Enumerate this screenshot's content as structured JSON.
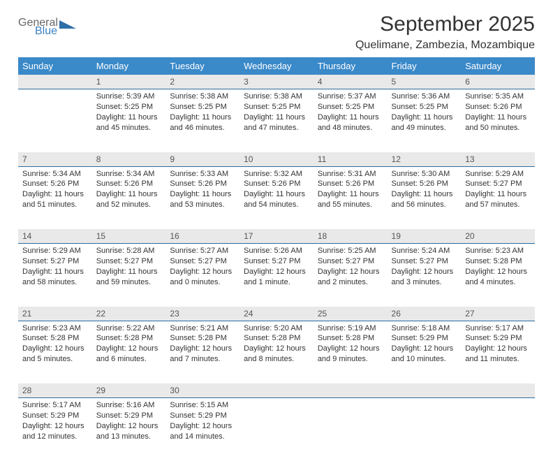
{
  "logo": {
    "part1": "General",
    "part2": "Blue"
  },
  "title": "September 2025",
  "location": "Quelimane, Zambezia, Mozambique",
  "colors": {
    "header_bg": "#3a89c9",
    "header_text": "#ffffff",
    "daynum_bg": "#e9e9e9",
    "daynum_border": "#2c6ca0",
    "logo_gray": "#666666",
    "logo_blue": "#3a7fc4",
    "triangle": "#2e6fa8"
  },
  "day_headers": [
    "Sunday",
    "Monday",
    "Tuesday",
    "Wednesday",
    "Thursday",
    "Friday",
    "Saturday"
  ],
  "weeks": [
    {
      "nums": [
        "",
        "1",
        "2",
        "3",
        "4",
        "5",
        "6"
      ],
      "cells": [
        {
          "sunrise": "",
          "sunset": "",
          "daylight1": "",
          "daylight2": ""
        },
        {
          "sunrise": "Sunrise: 5:39 AM",
          "sunset": "Sunset: 5:25 PM",
          "daylight1": "Daylight: 11 hours",
          "daylight2": "and 45 minutes."
        },
        {
          "sunrise": "Sunrise: 5:38 AM",
          "sunset": "Sunset: 5:25 PM",
          "daylight1": "Daylight: 11 hours",
          "daylight2": "and 46 minutes."
        },
        {
          "sunrise": "Sunrise: 5:38 AM",
          "sunset": "Sunset: 5:25 PM",
          "daylight1": "Daylight: 11 hours",
          "daylight2": "and 47 minutes."
        },
        {
          "sunrise": "Sunrise: 5:37 AM",
          "sunset": "Sunset: 5:25 PM",
          "daylight1": "Daylight: 11 hours",
          "daylight2": "and 48 minutes."
        },
        {
          "sunrise": "Sunrise: 5:36 AM",
          "sunset": "Sunset: 5:25 PM",
          "daylight1": "Daylight: 11 hours",
          "daylight2": "and 49 minutes."
        },
        {
          "sunrise": "Sunrise: 5:35 AM",
          "sunset": "Sunset: 5:26 PM",
          "daylight1": "Daylight: 11 hours",
          "daylight2": "and 50 minutes."
        }
      ]
    },
    {
      "nums": [
        "7",
        "8",
        "9",
        "10",
        "11",
        "12",
        "13"
      ],
      "cells": [
        {
          "sunrise": "Sunrise: 5:34 AM",
          "sunset": "Sunset: 5:26 PM",
          "daylight1": "Daylight: 11 hours",
          "daylight2": "and 51 minutes."
        },
        {
          "sunrise": "Sunrise: 5:34 AM",
          "sunset": "Sunset: 5:26 PM",
          "daylight1": "Daylight: 11 hours",
          "daylight2": "and 52 minutes."
        },
        {
          "sunrise": "Sunrise: 5:33 AM",
          "sunset": "Sunset: 5:26 PM",
          "daylight1": "Daylight: 11 hours",
          "daylight2": "and 53 minutes."
        },
        {
          "sunrise": "Sunrise: 5:32 AM",
          "sunset": "Sunset: 5:26 PM",
          "daylight1": "Daylight: 11 hours",
          "daylight2": "and 54 minutes."
        },
        {
          "sunrise": "Sunrise: 5:31 AM",
          "sunset": "Sunset: 5:26 PM",
          "daylight1": "Daylight: 11 hours",
          "daylight2": "and 55 minutes."
        },
        {
          "sunrise": "Sunrise: 5:30 AM",
          "sunset": "Sunset: 5:26 PM",
          "daylight1": "Daylight: 11 hours",
          "daylight2": "and 56 minutes."
        },
        {
          "sunrise": "Sunrise: 5:29 AM",
          "sunset": "Sunset: 5:27 PM",
          "daylight1": "Daylight: 11 hours",
          "daylight2": "and 57 minutes."
        }
      ]
    },
    {
      "nums": [
        "14",
        "15",
        "16",
        "17",
        "18",
        "19",
        "20"
      ],
      "cells": [
        {
          "sunrise": "Sunrise: 5:29 AM",
          "sunset": "Sunset: 5:27 PM",
          "daylight1": "Daylight: 11 hours",
          "daylight2": "and 58 minutes."
        },
        {
          "sunrise": "Sunrise: 5:28 AM",
          "sunset": "Sunset: 5:27 PM",
          "daylight1": "Daylight: 11 hours",
          "daylight2": "and 59 minutes."
        },
        {
          "sunrise": "Sunrise: 5:27 AM",
          "sunset": "Sunset: 5:27 PM",
          "daylight1": "Daylight: 12 hours",
          "daylight2": "and 0 minutes."
        },
        {
          "sunrise": "Sunrise: 5:26 AM",
          "sunset": "Sunset: 5:27 PM",
          "daylight1": "Daylight: 12 hours",
          "daylight2": "and 1 minute."
        },
        {
          "sunrise": "Sunrise: 5:25 AM",
          "sunset": "Sunset: 5:27 PM",
          "daylight1": "Daylight: 12 hours",
          "daylight2": "and 2 minutes."
        },
        {
          "sunrise": "Sunrise: 5:24 AM",
          "sunset": "Sunset: 5:27 PM",
          "daylight1": "Daylight: 12 hours",
          "daylight2": "and 3 minutes."
        },
        {
          "sunrise": "Sunrise: 5:23 AM",
          "sunset": "Sunset: 5:28 PM",
          "daylight1": "Daylight: 12 hours",
          "daylight2": "and 4 minutes."
        }
      ]
    },
    {
      "nums": [
        "21",
        "22",
        "23",
        "24",
        "25",
        "26",
        "27"
      ],
      "cells": [
        {
          "sunrise": "Sunrise: 5:23 AM",
          "sunset": "Sunset: 5:28 PM",
          "daylight1": "Daylight: 12 hours",
          "daylight2": "and 5 minutes."
        },
        {
          "sunrise": "Sunrise: 5:22 AM",
          "sunset": "Sunset: 5:28 PM",
          "daylight1": "Daylight: 12 hours",
          "daylight2": "and 6 minutes."
        },
        {
          "sunrise": "Sunrise: 5:21 AM",
          "sunset": "Sunset: 5:28 PM",
          "daylight1": "Daylight: 12 hours",
          "daylight2": "and 7 minutes."
        },
        {
          "sunrise": "Sunrise: 5:20 AM",
          "sunset": "Sunset: 5:28 PM",
          "daylight1": "Daylight: 12 hours",
          "daylight2": "and 8 minutes."
        },
        {
          "sunrise": "Sunrise: 5:19 AM",
          "sunset": "Sunset: 5:28 PM",
          "daylight1": "Daylight: 12 hours",
          "daylight2": "and 9 minutes."
        },
        {
          "sunrise": "Sunrise: 5:18 AM",
          "sunset": "Sunset: 5:29 PM",
          "daylight1": "Daylight: 12 hours",
          "daylight2": "and 10 minutes."
        },
        {
          "sunrise": "Sunrise: 5:17 AM",
          "sunset": "Sunset: 5:29 PM",
          "daylight1": "Daylight: 12 hours",
          "daylight2": "and 11 minutes."
        }
      ]
    },
    {
      "nums": [
        "28",
        "29",
        "30",
        "",
        "",
        "",
        ""
      ],
      "cells": [
        {
          "sunrise": "Sunrise: 5:17 AM",
          "sunset": "Sunset: 5:29 PM",
          "daylight1": "Daylight: 12 hours",
          "daylight2": "and 12 minutes."
        },
        {
          "sunrise": "Sunrise: 5:16 AM",
          "sunset": "Sunset: 5:29 PM",
          "daylight1": "Daylight: 12 hours",
          "daylight2": "and 13 minutes."
        },
        {
          "sunrise": "Sunrise: 5:15 AM",
          "sunset": "Sunset: 5:29 PM",
          "daylight1": "Daylight: 12 hours",
          "daylight2": "and 14 minutes."
        },
        {
          "sunrise": "",
          "sunset": "",
          "daylight1": "",
          "daylight2": ""
        },
        {
          "sunrise": "",
          "sunset": "",
          "daylight1": "",
          "daylight2": ""
        },
        {
          "sunrise": "",
          "sunset": "",
          "daylight1": "",
          "daylight2": ""
        },
        {
          "sunrise": "",
          "sunset": "",
          "daylight1": "",
          "daylight2": ""
        }
      ]
    }
  ]
}
